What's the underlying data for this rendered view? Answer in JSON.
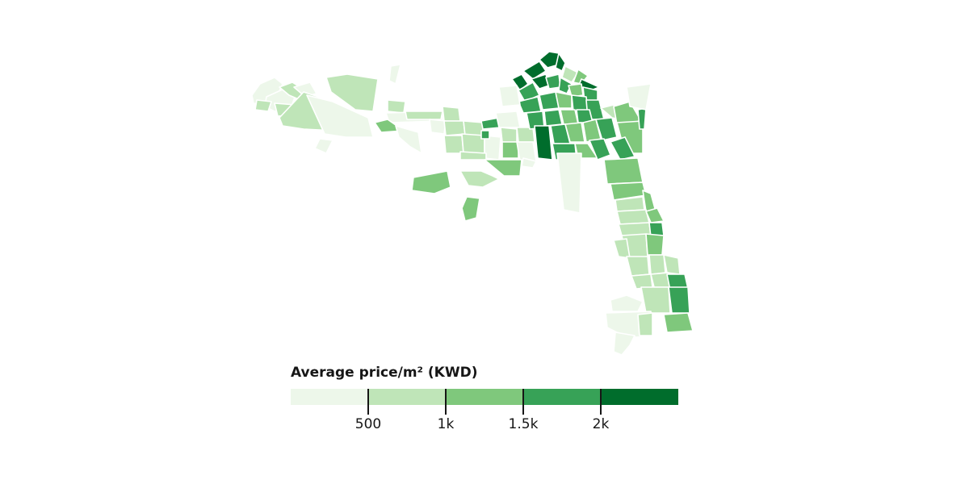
{
  "legend": {
    "title": "Average price/m² (KWD)",
    "classes": [
      {
        "color": "#edf7ea"
      },
      {
        "color": "#bfe5b8"
      },
      {
        "color": "#7fc87c"
      },
      {
        "color": "#37a257"
      },
      {
        "color": "#006d2c"
      }
    ],
    "thresholds": [
      {
        "value": 500,
        "label": "500"
      },
      {
        "value": 1000,
        "label": "1k"
      },
      {
        "value": 1500,
        "label": "1.5k"
      },
      {
        "value": 2000,
        "label": "2k"
      }
    ]
  },
  "map": {
    "type": "choropleth",
    "stroke_color": "#ffffff"
  }
}
